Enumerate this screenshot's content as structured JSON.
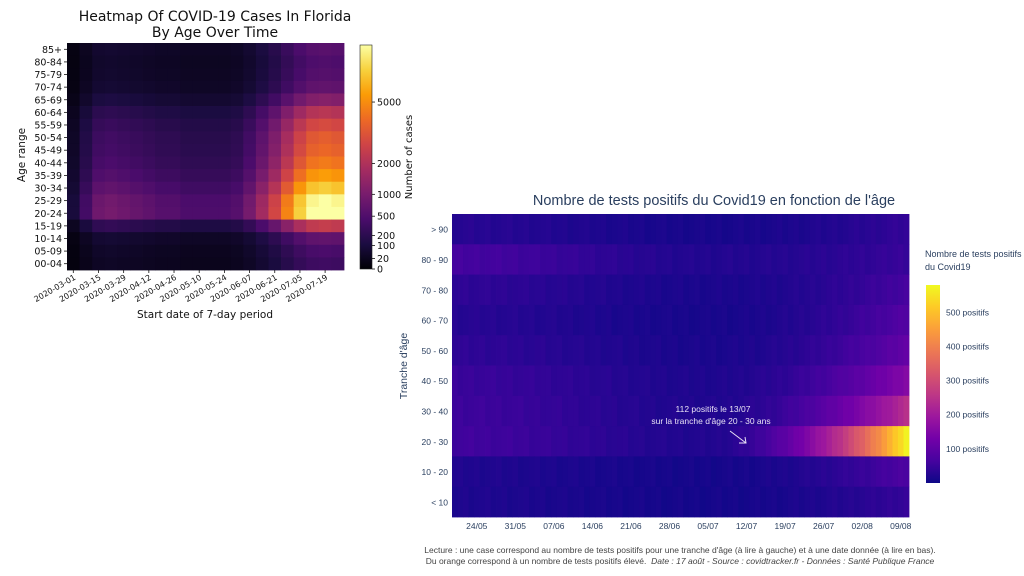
{
  "chart_data": [
    {
      "type": "heatmap",
      "title_line1": "Heatmap Of COVID-19 Cases In Florida",
      "title_line2": "By Age Over Time",
      "xlabel": "Start date of 7-day period",
      "ylabel": "Age range",
      "x_ticks": [
        "2020-03-01",
        "2020-03-15",
        "2020-03-29",
        "2020-04-12",
        "2020-04-26",
        "2020-05-10",
        "2020-05-24",
        "2020-06-07",
        "2020-06-21",
        "2020-07-05",
        "2020-07-19"
      ],
      "n_weeks": 22,
      "age_groups": [
        "85+",
        "80-84",
        "75-79",
        "70-74",
        "65-69",
        "60-64",
        "55-59",
        "50-54",
        "45-49",
        "40-44",
        "35-39",
        "30-34",
        "25-29",
        "20-24",
        "15-19",
        "10-14",
        "05-09",
        "00-04"
      ],
      "colorbar_label": "Number of cases",
      "colorbar_ticks": [
        "5000",
        "2000",
        "1000",
        "500",
        "200",
        "100",
        "20",
        "0"
      ],
      "colorbar_tick_values": [
        5000,
        2000,
        1000,
        500,
        200,
        100,
        20,
        0
      ],
      "colorbar_max": 9000,
      "colormap": [
        "#000004",
        "#1b0c41",
        "#4a0c6b",
        "#781c6d",
        "#a52c60",
        "#cf4446",
        "#ed6925",
        "#fb9b06",
        "#f7d13d",
        "#fcffa4"
      ],
      "peak_by_age": [
        600,
        500,
        560,
        700,
        1200,
        2200,
        3000,
        3600,
        3900,
        4500,
        5500,
        7000,
        9000,
        9500,
        2500,
        700,
        450,
        350
      ],
      "week_profile": [
        0.01,
        0.04,
        0.09,
        0.1,
        0.09,
        0.08,
        0.07,
        0.06,
        0.06,
        0.05,
        0.05,
        0.05,
        0.05,
        0.06,
        0.1,
        0.18,
        0.3,
        0.5,
        0.75,
        0.95,
        1.0,
        0.95
      ]
    },
    {
      "type": "heatmap",
      "title": "Nombre de tests positifs du Covid19 en fonction de l'âge",
      "ylabel": "Tranche d'âge",
      "y_categories": [
        "> 90",
        "80 - 90",
        "70 - 80",
        "60 - 70",
        "50 - 60",
        "40 - 50",
        "30 - 40",
        "20 - 30",
        "10 - 20",
        "< 10"
      ],
      "x_ticks": [
        "24/05",
        "31/05",
        "07/06",
        "14/06",
        "21/06",
        "28/06",
        "05/07",
        "12/07",
        "19/07",
        "26/07",
        "02/08",
        "09/08"
      ],
      "n_days": 83,
      "colorbar_title_line1": "Nombre de tests positifs",
      "colorbar_title_line2": "du Covid19",
      "colorbar_ticks": [
        "500 positifs",
        "400 positifs",
        "300 positifs",
        "200 positifs",
        "100 positifs"
      ],
      "colorbar_tick_values": [
        500,
        400,
        300,
        200,
        100
      ],
      "colorbar_range": [
        0,
        580
      ],
      "colormap": [
        "#0d0887",
        "#46039f",
        "#7201a8",
        "#9c179e",
        "#bd3786",
        "#d8576b",
        "#ed7953",
        "#fb9f3a",
        "#fdca26",
        "#f0f921"
      ],
      "peak_by_age": [
        45,
        60,
        70,
        85,
        110,
        165,
        250,
        580,
        75,
        45
      ],
      "early_level_by_age": [
        30,
        70,
        40,
        30,
        40,
        55,
        60,
        65,
        20,
        18
      ],
      "annotation_line1": "112 positifs le 13/07",
      "annotation_line2": "sur la tranche d'âge 20 - 30 ans",
      "caption_line1": "Lecture : une case correspond au nombre de tests positifs pour une tranche d'âge (à lire à gauche) et à une date donnée (à lire en bas).",
      "caption_line2_plain": "Du orange correspond à un nombre de tests positifs élevé.",
      "caption_line2_italic": "Date : 17 août - Source : covidtracker.fr - Données : Santé Publique France"
    }
  ]
}
